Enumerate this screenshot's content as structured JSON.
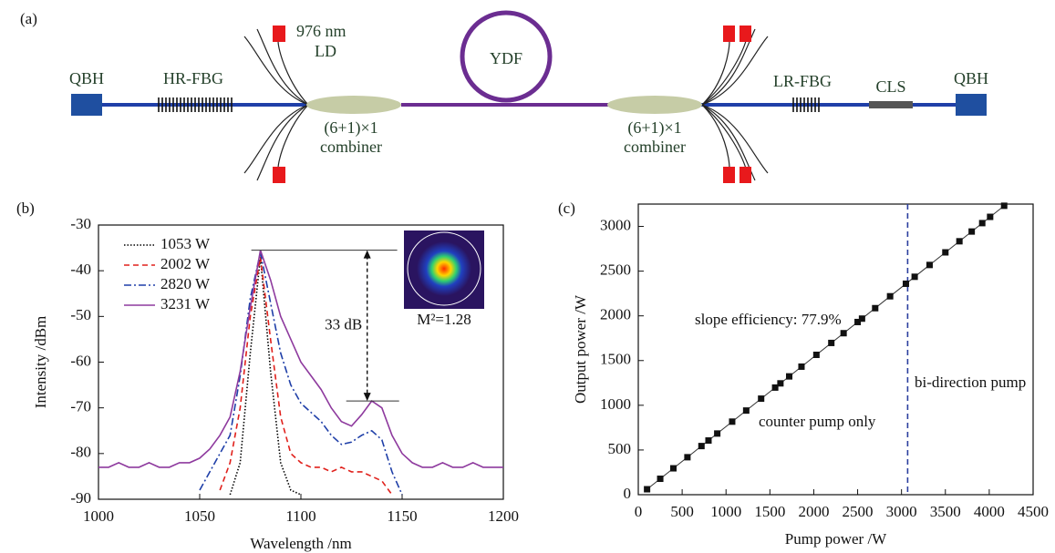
{
  "diagram": {
    "label": "(a)",
    "components": [
      {
        "label": "QBH"
      },
      {
        "label": "HR-FBG"
      },
      {
        "label": "976 nm"
      },
      {
        "label": "LD"
      },
      {
        "label": "YDF"
      },
      {
        "label": "(6+1)×1"
      },
      {
        "label": "combiner"
      },
      {
        "label": "(6+1)×1"
      },
      {
        "label": "combiner"
      },
      {
        "label": "LR-FBG"
      },
      {
        "label": "CLS"
      },
      {
        "label": "QBH"
      }
    ]
  },
  "chart_data": [
    {
      "type": "line",
      "panel": "(b)",
      "xlabel": "Wavelength /nm",
      "ylabel": "Intensity /dBm",
      "x": [
        1000,
        1005,
        1010,
        1015,
        1020,
        1025,
        1030,
        1035,
        1040,
        1045,
        1050,
        1055,
        1060,
        1065,
        1070,
        1075,
        1080,
        1085,
        1090,
        1095,
        1100,
        1105,
        1110,
        1115,
        1120,
        1125,
        1130,
        1135,
        1140,
        1145,
        1150,
        1155,
        1160,
        1165,
        1170,
        1175,
        1180,
        1185,
        1190,
        1195,
        1200
      ],
      "series": [
        {
          "name": "1053 W",
          "color": "#000000",
          "style": "dotted",
          "values": [
            null,
            null,
            null,
            null,
            null,
            null,
            null,
            null,
            null,
            null,
            null,
            null,
            null,
            -89,
            -82,
            -58,
            -37,
            -62,
            -82,
            -88,
            -89,
            null,
            null,
            null,
            null,
            null,
            null,
            null,
            null,
            null,
            null,
            null,
            null,
            null,
            null,
            null,
            null,
            null,
            null,
            null,
            null
          ]
        },
        {
          "name": "2002 W",
          "color": "#e0201b",
          "style": "dashed",
          "values": [
            null,
            null,
            null,
            null,
            null,
            null,
            null,
            null,
            null,
            null,
            null,
            null,
            -88,
            -82,
            -70,
            -50,
            -37,
            -55,
            -72,
            -80,
            -82,
            -83,
            -83,
            -84,
            -83,
            -84,
            -84,
            -85,
            -86,
            -89,
            null,
            null,
            null,
            null,
            null,
            null,
            null,
            null,
            null,
            null,
            null
          ]
        },
        {
          "name": "2820 W",
          "color": "#1f3fa8",
          "style": "dashdot",
          "values": [
            null,
            null,
            null,
            null,
            null,
            null,
            null,
            null,
            null,
            null,
            -88,
            -84,
            -80,
            -76,
            -63,
            -46,
            -36,
            -47,
            -58,
            -65,
            -69,
            -71,
            -73,
            -76,
            -78,
            -77.5,
            -76,
            -75,
            -77,
            -84,
            -89,
            null,
            null,
            null,
            null,
            null,
            null,
            null,
            null,
            null,
            null
          ]
        },
        {
          "name": "3231 W",
          "color": "#8e3a9e",
          "style": "solid",
          "values": [
            -83,
            -83,
            -82,
            -83,
            -83,
            -82,
            -83,
            -83,
            -82,
            -82,
            -81,
            -79,
            -76,
            -72,
            -62,
            -48,
            -35.5,
            -42,
            -50,
            -55,
            -60,
            -63,
            -66,
            -70,
            -73,
            -74,
            -71.5,
            -68.5,
            -70,
            -76,
            -80,
            -82,
            -83,
            -83,
            -82,
            -83,
            -83,
            -82,
            -83,
            -83,
            -83
          ]
        }
      ],
      "xlim": [
        1000,
        1200
      ],
      "xticks": [
        1000,
        1050,
        1100,
        1150,
        1200
      ],
      "ylim": [
        -90,
        -30
      ],
      "yticks": [
        -90,
        -80,
        -70,
        -60,
        -50,
        -40,
        -30
      ],
      "legend": "upper left",
      "annotations": [
        "33 dB",
        "M²=1.28"
      ]
    },
    {
      "type": "scatter",
      "panel": "(c)",
      "xlabel": "Pump power /W",
      "ylabel": "Output power /W",
      "x": [
        100,
        250,
        400,
        560,
        720,
        800,
        900,
        1070,
        1230,
        1400,
        1560,
        1620,
        1720,
        1860,
        2030,
        2200,
        2340,
        2500,
        2550,
        2700,
        2870,
        3050,
        3150,
        3320,
        3500,
        3660,
        3800,
        3920,
        4010,
        4170
      ],
      "values": [
        61,
        178,
        295,
        419,
        544,
        606,
        684,
        817,
        941,
        1074,
        1198,
        1245,
        1323,
        1432,
        1564,
        1697,
        1806,
        1931,
        1969,
        2086,
        2219,
        2359,
        2437,
        2569,
        2710,
        2834,
        2943,
        3037,
        3107,
        3231
      ],
      "color": "#111111",
      "vline": 3070,
      "vline_color": "#2a3e9e",
      "xlim": [
        0,
        4500
      ],
      "xticks": [
        0,
        500,
        1000,
        1500,
        2000,
        2500,
        3000,
        3500,
        4000,
        4500
      ],
      "ylim": [
        0,
        3250
      ],
      "yticks": [
        0,
        500,
        1000,
        1500,
        2000,
        2500,
        3000
      ],
      "annotations": [
        "slope efficiency: 77.9%",
        "counter pump only",
        "bi-direction pump"
      ]
    }
  ]
}
